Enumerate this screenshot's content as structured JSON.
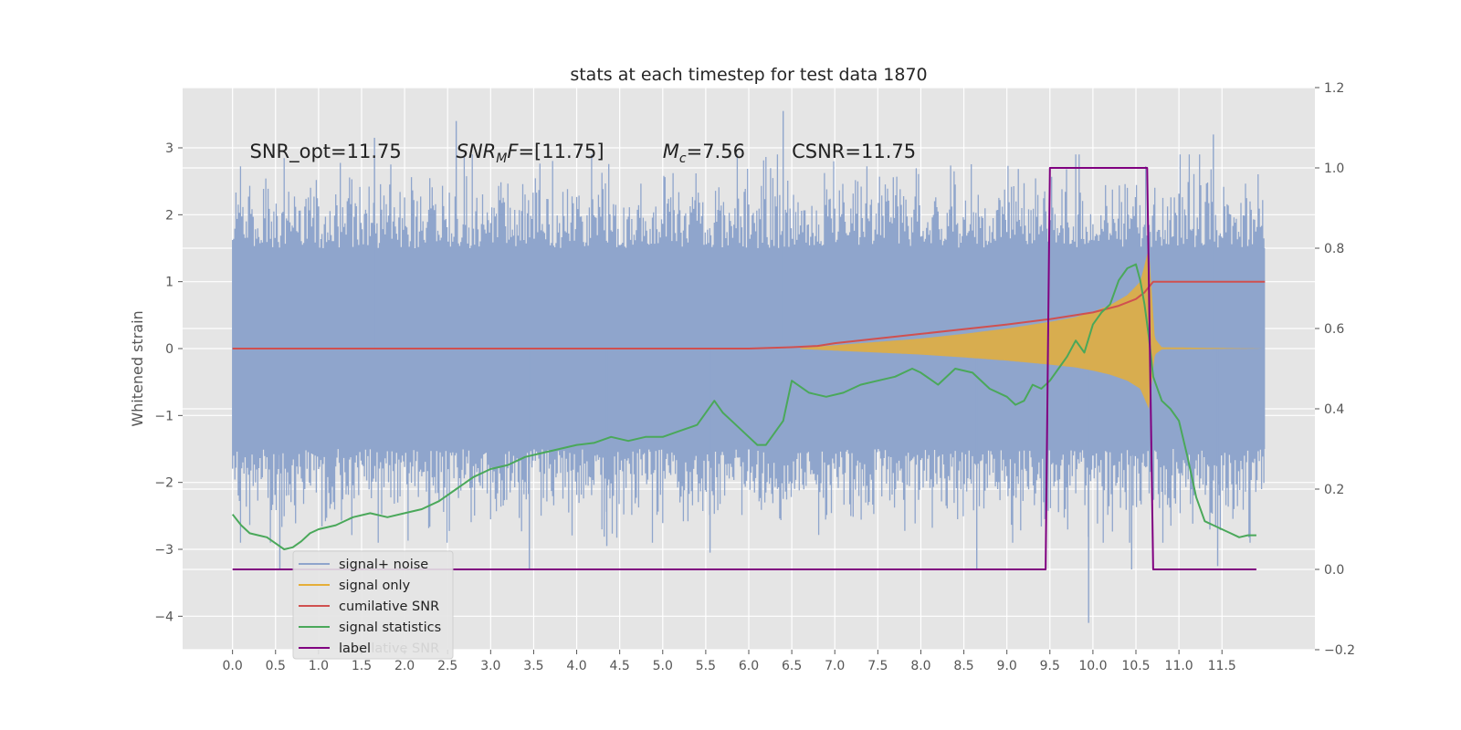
{
  "chart_data": {
    "type": "line",
    "title": "stats at each timestep for test data 1870",
    "ylabel": "Whitened strain",
    "xlim": [
      -0.58,
      12.58
    ],
    "ylim": [
      -4.5,
      3.9
    ],
    "y2lim": [
      -0.2,
      1.2
    ],
    "x_ticks": [
      0.0,
      0.5,
      1.0,
      1.5,
      2.0,
      2.5,
      3.0,
      3.5,
      4.0,
      4.5,
      5.0,
      5.5,
      6.0,
      6.5,
      7.0,
      7.5,
      8.0,
      8.5,
      9.0,
      9.5,
      10.0,
      10.5,
      11.0,
      11.5
    ],
    "x_tick_labels": [
      "0.0",
      "0.5",
      "1.0",
      "1.5",
      "2.0",
      "2.5",
      "3.0",
      "3.5",
      "4.0",
      "4.5",
      "5.0",
      "5.5",
      "6.0",
      "6.5",
      "7.0",
      "7.5",
      "8.0",
      "8.5",
      "9.0",
      "9.5",
      "10.0",
      "10.5",
      "11.0",
      "11.5"
    ],
    "y_ticks": [
      -4,
      -3,
      -2,
      -1,
      0,
      1,
      2,
      3
    ],
    "y_tick_labels": [
      "−4",
      "−3",
      "−2",
      "−1",
      "0",
      "1",
      "2",
      "3"
    ],
    "y2_ticks": [
      -0.2,
      0.0,
      0.2,
      0.4,
      0.6,
      0.8,
      1.0,
      1.2
    ],
    "y2_tick_labels": [
      "−0.2",
      "0.0",
      "0.2",
      "0.4",
      "0.6",
      "0.8",
      "1.0",
      "1.2"
    ],
    "grid": true,
    "legend_position": "lower-left",
    "annotations": [
      {
        "label": "SNR_opt=11.75",
        "x": 0.2,
        "y": 2.85
      },
      {
        "label": "SNR_MF=[11.75]",
        "x": 2.6,
        "y": 2.85
      },
      {
        "label": "M_c=7.56",
        "x": 5.0,
        "y": 2.85
      },
      {
        "label": "CSNR=11.75",
        "x": 6.5,
        "y": 2.85
      }
    ],
    "annotation_parts": [
      [
        {
          "t": "SNR_opt=11.75",
          "style": "normal"
        }
      ],
      [
        {
          "t": "SNR",
          "style": "italic"
        },
        {
          "t": "M",
          "style": "italic-sub"
        },
        {
          "t": "F",
          "style": "italic"
        },
        {
          "t": "=[11.75]",
          "style": "normal"
        }
      ],
      [
        {
          "t": "M",
          "style": "italic"
        },
        {
          "t": "c",
          "style": "italic-sub"
        },
        {
          "t": "=7.56",
          "style": "normal"
        }
      ],
      [
        {
          "t": "CSNR=11.75",
          "style": "normal"
        }
      ]
    ],
    "series": [
      {
        "name": "signal+ noise",
        "color": "#8fa5cc",
        "axis": "left",
        "style": "noise",
        "x_range": [
          0.0,
          12.0
        ],
        "band": [
          -1.5,
          1.5
        ],
        "spike_max": [
          -4.1,
          3.55
        ],
        "notable_spikes": [
          {
            "x": 6.4,
            "y": 3.55
          },
          {
            "x": 2.6,
            "y": 3.4
          },
          {
            "x": 11.4,
            "y": 3.2
          },
          {
            "x": 1.65,
            "y": 3.15
          },
          {
            "x": 3.45,
            "y": -3.3
          },
          {
            "x": 9.95,
            "y": -4.1
          },
          {
            "x": 5.55,
            "y": -3.05
          },
          {
            "x": 8.65,
            "y": -3.3
          },
          {
            "x": 10.45,
            "y": -3.3
          },
          {
            "x": 11.45,
            "y": -3.25
          },
          {
            "x": 4.35,
            "y": -2.95
          },
          {
            "x": 0.55,
            "y": -3.3
          }
        ]
      },
      {
        "name": "signal only",
        "color": "#e5ae38",
        "axis": "left",
        "style": "chirp",
        "x": [
          6.6,
          7.0,
          7.5,
          8.0,
          8.5,
          9.0,
          9.5,
          9.8,
          10.0,
          10.2,
          10.4,
          10.55,
          10.65,
          10.72,
          10.8,
          12.0
        ],
        "envelope": [
          0.01,
          0.05,
          0.1,
          0.15,
          0.22,
          0.3,
          0.4,
          0.47,
          0.55,
          0.65,
          0.8,
          1.0,
          1.5,
          0.15,
          0.02,
          0.0
        ]
      },
      {
        "name": "cumilative SNR",
        "color": "#d0504f",
        "axis": "left",
        "x": [
          0.0,
          6.0,
          6.5,
          6.8,
          7.0,
          7.5,
          8.0,
          8.5,
          9.0,
          9.5,
          10.0,
          10.3,
          10.5,
          10.6,
          10.7,
          12.0
        ],
        "values": [
          0.0,
          0.0,
          0.02,
          0.04,
          0.08,
          0.15,
          0.22,
          0.29,
          0.36,
          0.44,
          0.54,
          0.64,
          0.74,
          0.84,
          1.0,
          1.0
        ]
      },
      {
        "name": "signal statistics",
        "color": "#4aa85a",
        "axis": "right",
        "x": [
          0.0,
          0.1,
          0.2,
          0.3,
          0.4,
          0.5,
          0.6,
          0.7,
          0.8,
          0.9,
          1.0,
          1.2,
          1.4,
          1.6,
          1.8,
          2.0,
          2.2,
          2.4,
          2.6,
          2.8,
          3.0,
          3.2,
          3.4,
          3.6,
          3.8,
          4.0,
          4.2,
          4.4,
          4.6,
          4.8,
          5.0,
          5.2,
          5.4,
          5.6,
          5.7,
          5.8,
          6.0,
          6.1,
          6.2,
          6.4,
          6.5,
          6.7,
          6.9,
          7.1,
          7.3,
          7.5,
          7.7,
          7.9,
          8.0,
          8.2,
          8.4,
          8.6,
          8.8,
          9.0,
          9.1,
          9.2,
          9.3,
          9.4,
          9.5,
          9.6,
          9.7,
          9.8,
          9.9,
          10.0,
          10.1,
          10.2,
          10.3,
          10.4,
          10.5,
          10.55,
          10.6,
          10.65,
          10.7,
          10.8,
          10.9,
          11.0,
          11.1,
          11.2,
          11.3,
          11.4,
          11.5,
          11.6,
          11.7,
          11.8,
          11.9
        ],
        "values": [
          0.137,
          0.11,
          0.09,
          0.085,
          0.08,
          0.065,
          0.05,
          0.055,
          0.07,
          0.09,
          0.1,
          0.11,
          0.13,
          0.14,
          0.13,
          0.14,
          0.15,
          0.17,
          0.2,
          0.23,
          0.25,
          0.26,
          0.28,
          0.29,
          0.3,
          0.31,
          0.315,
          0.33,
          0.32,
          0.33,
          0.33,
          0.345,
          0.36,
          0.42,
          0.39,
          0.37,
          0.33,
          0.31,
          0.31,
          0.37,
          0.47,
          0.44,
          0.43,
          0.44,
          0.46,
          0.47,
          0.48,
          0.5,
          0.49,
          0.46,
          0.5,
          0.49,
          0.45,
          0.43,
          0.41,
          0.42,
          0.46,
          0.45,
          0.47,
          0.5,
          0.53,
          0.57,
          0.54,
          0.61,
          0.64,
          0.66,
          0.72,
          0.75,
          0.76,
          0.72,
          0.66,
          0.58,
          0.48,
          0.42,
          0.4,
          0.37,
          0.28,
          0.18,
          0.12,
          0.11,
          0.1,
          0.09,
          0.08,
          0.085,
          0.085
        ]
      },
      {
        "name": "label",
        "color": "#800080",
        "axis": "right",
        "x": [
          0.0,
          9.45,
          9.5,
          10.63,
          10.7,
          11.9
        ],
        "values": [
          0.0,
          0.0,
          1.0,
          1.0,
          0.0,
          0.0
        ]
      }
    ],
    "legend": [
      "signal+ noise",
      "signal only",
      "cumilative SNR",
      "signal statistics",
      "label"
    ],
    "legend_ghost_text": "cumilative SNR"
  }
}
